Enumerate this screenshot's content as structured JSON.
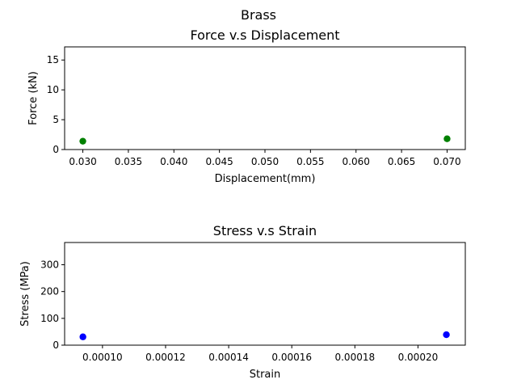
{
  "figure": {
    "suptitle": "Brass",
    "colors": {
      "background": "#ffffff",
      "axes": "#000000"
    }
  },
  "chart_data": [
    {
      "type": "scatter",
      "title": "Force v.s Displacement",
      "xlabel": "Displacement(mm)",
      "ylabel": "Force (kN)",
      "xlim": [
        0.028,
        0.072
      ],
      "ylim": [
        0,
        17.2
      ],
      "xticks": [
        0.03,
        0.035,
        0.04,
        0.045,
        0.05,
        0.055,
        0.06,
        0.065,
        0.07
      ],
      "xtick_labels": [
        "0.030",
        "0.035",
        "0.040",
        "0.045",
        "0.050",
        "0.055",
        "0.060",
        "0.065",
        "0.070"
      ],
      "yticks": [
        0,
        5,
        10,
        15
      ],
      "ytick_labels": [
        "0",
        "5",
        "10",
        "15"
      ],
      "grid": false,
      "series": [
        {
          "color": "#008000",
          "x": [
            0.03,
            0.07
          ],
          "y": [
            1.4,
            1.8
          ]
        }
      ]
    },
    {
      "type": "scatter",
      "title": "Stress v.s Strain",
      "xlabel": "Strain",
      "ylabel": "Stress (MPa)",
      "xlim": [
        8.8e-05,
        0.000215
      ],
      "ylim": [
        0,
        383
      ],
      "xticks": [
        0.0001,
        0.00012,
        0.00014,
        0.00016,
        0.00018,
        0.0002
      ],
      "xtick_labels": [
        "0.00010",
        "0.00012",
        "0.00014",
        "0.00016",
        "0.00018",
        "0.00020"
      ],
      "yticks": [
        0,
        100,
        200,
        300
      ],
      "ytick_labels": [
        "0",
        "100",
        "200",
        "300"
      ],
      "grid": false,
      "series": [
        {
          "color": "#0000ff",
          "x": [
            9.38e-05,
            0.000209
          ],
          "y": [
            31,
            39
          ]
        }
      ]
    }
  ]
}
